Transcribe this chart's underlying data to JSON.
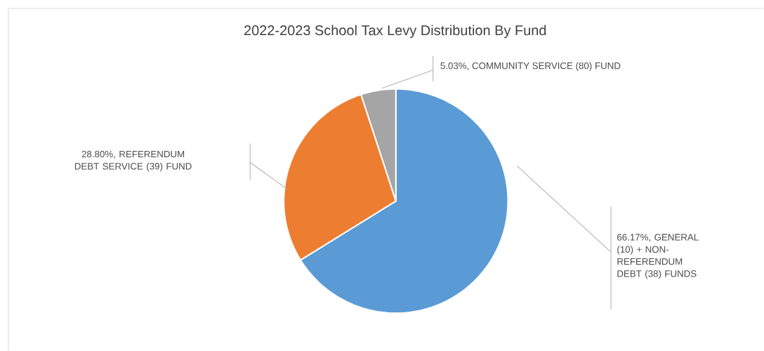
{
  "chart_data": {
    "type": "pie",
    "title": "2022-2023 School Tax Levy Distribution By Fund",
    "categories": [
      "GENERAL (10) + NON-REFERENDUM DEBT (38) FUNDS",
      "REFERENDUM DEBT SERVICE (39) FUND",
      "COMMUNITY SERVICE (80) FUND"
    ],
    "values": [
      66.17,
      28.8,
      5.03
    ],
    "value_labels": [
      "66.17%,",
      "28.80%,",
      "5.03%,"
    ],
    "colors": [
      "#5b9bd5",
      "#ed7d31",
      "#a5a5a5"
    ]
  }
}
